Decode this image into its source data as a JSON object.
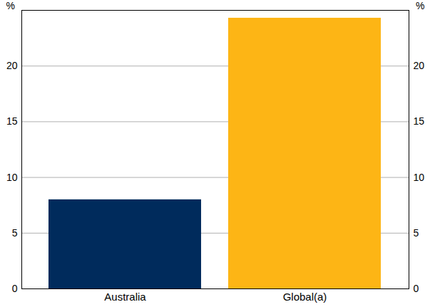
{
  "chart_data": {
    "type": "bar",
    "categories": [
      "Australia",
      "Global(a)"
    ],
    "values": [
      8,
      24.3
    ],
    "colors": [
      "#002b5c",
      "#fdb515"
    ],
    "ylabel": "%",
    "ylim": [
      0,
      25
    ],
    "yticks": [
      0,
      5,
      10,
      15,
      20
    ],
    "grid": true
  }
}
